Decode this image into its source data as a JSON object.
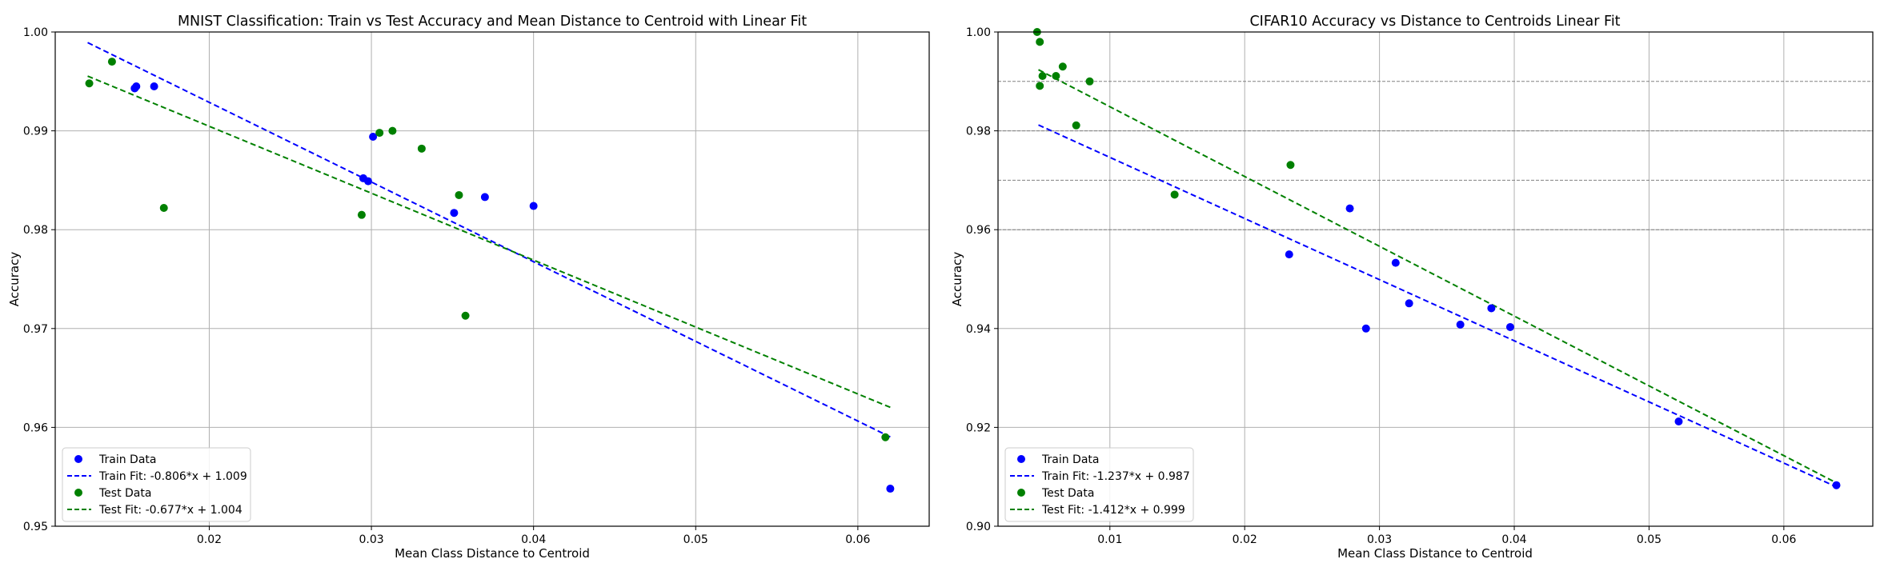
{
  "chart_data": [
    {
      "type": "scatter",
      "title": "MNIST Classification: Train vs Test Accuracy and Mean Distance to Centroid with Linear Fit",
      "xlabel": "Mean Class Distance to Centroid",
      "ylabel": "Accuracy",
      "xlim": [
        0.0105,
        0.0644
      ],
      "ylim": [
        0.95,
        1.0
      ],
      "xticks": [
        "0.02",
        "0.03",
        "0.04",
        "0.05",
        "0.06"
      ],
      "yticks": [
        "0.95",
        "0.96",
        "0.97",
        "0.98",
        "0.99",
        "1.00"
      ],
      "grid": true,
      "legend_position": "lower-left",
      "legend": [
        "Train Data",
        "Train Fit: -0.806*x + 1.009",
        "Test Data",
        "Test Fit: -0.677*x + 1.004"
      ],
      "series": [
        {
          "name": "Train Data",
          "kind": "scatter",
          "color": "#0000ff",
          "points": [
            [
              0.0154,
              0.9943
            ],
            [
              0.0155,
              0.9945
            ],
            [
              0.0166,
              0.9945
            ],
            [
              0.0295,
              0.9852
            ],
            [
              0.0298,
              0.9849
            ],
            [
              0.0301,
              0.9894
            ],
            [
              0.0351,
              0.9817
            ],
            [
              0.037,
              0.9833
            ],
            [
              0.04,
              0.9824
            ],
            [
              0.062,
              0.9538
            ]
          ]
        },
        {
          "name": "Train Fit: -0.806*x + 1.009",
          "kind": "line",
          "color": "#0000ff",
          "slope": -0.806,
          "intercept": 1.009,
          "x_range": [
            0.0125,
            0.062
          ]
        },
        {
          "name": "Test Data",
          "kind": "scatter",
          "color": "#008000",
          "points": [
            [
              0.0126,
              0.9948
            ],
            [
              0.014,
              0.997
            ],
            [
              0.0172,
              0.9822
            ],
            [
              0.0294,
              0.9815
            ],
            [
              0.0305,
              0.9898
            ],
            [
              0.0313,
              0.99
            ],
            [
              0.0331,
              0.9882
            ],
            [
              0.0354,
              0.9835
            ],
            [
              0.0358,
              0.9713
            ],
            [
              0.0617,
              0.959
            ]
          ]
        },
        {
          "name": "Test Fit: -0.677*x + 1.004",
          "kind": "line",
          "color": "#008000",
          "slope": -0.677,
          "intercept": 1.004,
          "x_range": [
            0.0125,
            0.062
          ]
        }
      ]
    },
    {
      "type": "scatter",
      "title": "CIFAR10 Accuracy vs Distance to Centroids Linear Fit",
      "xlabel": "Mean Class Distance to Centroid",
      "ylabel": "Accuracy",
      "xlim": [
        0.0017,
        0.0666
      ],
      "ylim": [
        0.9,
        1.0
      ],
      "xticks": [
        "0.01",
        "0.02",
        "0.03",
        "0.04",
        "0.05",
        "0.06"
      ],
      "yticks": [
        "0.90",
        "0.92",
        "0.94",
        "0.96",
        "0.98",
        "1.00"
      ],
      "grid": true,
      "reference_lines_y": [
        0.96,
        0.97,
        0.98,
        0.99
      ],
      "legend_position": "lower-left",
      "legend": [
        "Train Data",
        "Train Fit: -1.237*x + 0.987",
        "Test Data",
        "Test Fit: -1.412*x + 0.999"
      ],
      "series": [
        {
          "name": "Train Data",
          "kind": "scatter",
          "color": "#0000ff",
          "points": [
            [
              0.0233,
              0.955
            ],
            [
              0.0278,
              0.9643
            ],
            [
              0.029,
              0.94
            ],
            [
              0.0312,
              0.9533
            ],
            [
              0.0322,
              0.9451
            ],
            [
              0.036,
              0.9408
            ],
            [
              0.0383,
              0.9441
            ],
            [
              0.0397,
              0.9403
            ],
            [
              0.0522,
              0.9212
            ],
            [
              0.0639,
              0.9083
            ]
          ]
        },
        {
          "name": "Train Fit: -1.237*x + 0.987",
          "kind": "line",
          "color": "#0000ff",
          "slope": -1.237,
          "intercept": 0.987,
          "x_range": [
            0.0047,
            0.0639
          ]
        },
        {
          "name": "Test Data",
          "kind": "scatter",
          "color": "#008000",
          "points": [
            [
              0.0046,
              1.0
            ],
            [
              0.0048,
              0.998
            ],
            [
              0.0048,
              0.9891
            ],
            [
              0.005,
              0.9911
            ],
            [
              0.006,
              0.9911
            ],
            [
              0.0065,
              0.993
            ],
            [
              0.0075,
              0.9811
            ],
            [
              0.0085,
              0.99
            ],
            [
              0.0148,
              0.9671
            ],
            [
              0.0234,
              0.9731
            ]
          ]
        },
        {
          "name": "Test Fit: -1.412*x + 0.999",
          "kind": "line",
          "color": "#008000",
          "slope": -1.412,
          "intercept": 0.999,
          "x_range": [
            0.0047,
            0.0639
          ]
        }
      ]
    }
  ]
}
